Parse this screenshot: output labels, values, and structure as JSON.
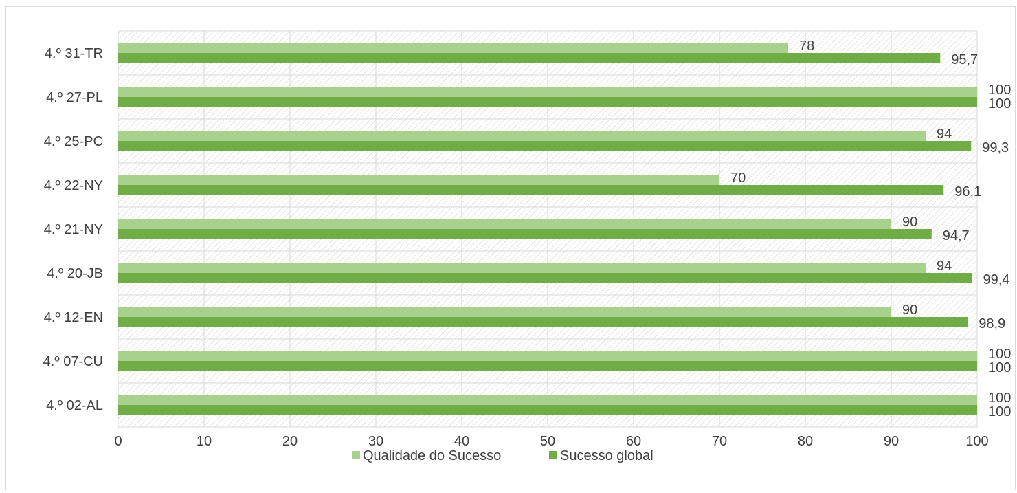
{
  "chart_data": {
    "type": "bar",
    "orientation": "horizontal",
    "categories": [
      "4.º 31-TR",
      "4.º 27-PL",
      "4.º 25-PC",
      "4.º 22-NY",
      "4.º 21-NY",
      "4.º 20-JB",
      "4.º 12-EN",
      "4.º 07-CU",
      "4.º 02-AL"
    ],
    "series": [
      {
        "name": "Qualidade do Sucesso",
        "color": "#a9d18e",
        "values": [
          78,
          100,
          94,
          70,
          90,
          94,
          90,
          100,
          100
        ],
        "labels": [
          "78",
          "100",
          "94",
          "70",
          "90",
          "94",
          "90",
          "100",
          "100"
        ]
      },
      {
        "name": "Sucesso global",
        "color": "#70ad47",
        "values": [
          95.7,
          100,
          99.3,
          96.1,
          94.7,
          99.4,
          98.9,
          100,
          100
        ],
        "labels": [
          "95,7",
          "100",
          "99,3",
          "96,1",
          "94,7",
          "99,4",
          "98,9",
          "100",
          "100"
        ]
      }
    ],
    "xlim": [
      0,
      100
    ],
    "xticks": [
      0,
      10,
      20,
      30,
      40,
      50,
      60,
      70,
      80,
      90,
      100
    ],
    "tick_labels": [
      "0",
      "10",
      "20",
      "30",
      "40",
      "50",
      "60",
      "70",
      "80",
      "90",
      "100"
    ],
    "grid": true,
    "plot_background": "hatched",
    "legend_position": "bottom",
    "title": "",
    "xlabel": "",
    "ylabel": ""
  }
}
